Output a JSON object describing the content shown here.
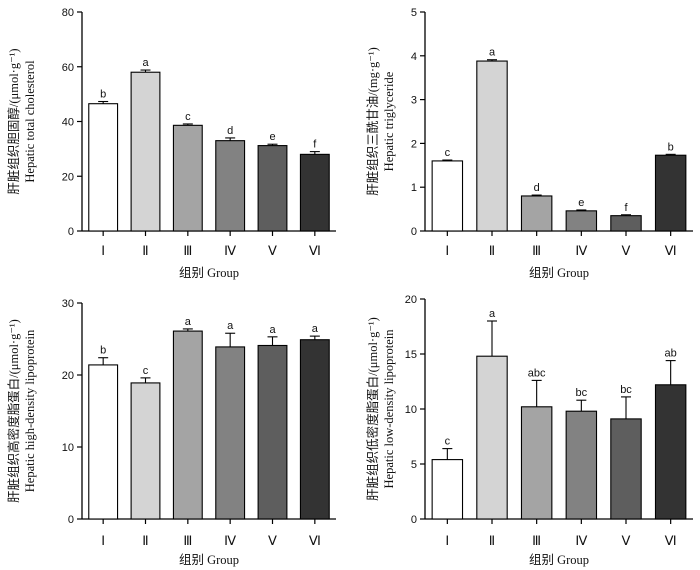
{
  "colors": [
    "#ffffff",
    "#d4d4d4",
    "#a4a4a4",
    "#828282",
    "#5e5e5e",
    "#333333"
  ],
  "chart_data": [
    {
      "type": "bar",
      "title": "",
      "categories": [
        "Ⅰ",
        "Ⅱ",
        "Ⅲ",
        "Ⅳ",
        "Ⅴ",
        "Ⅵ"
      ],
      "values": [
        46.5,
        58.0,
        38.6,
        33.0,
        31.2,
        28.0
      ],
      "errors": [
        0.8,
        0.8,
        0.5,
        1.0,
        0.5,
        1.0
      ],
      "letters": [
        "b",
        "a",
        "c",
        "d",
        "e",
        "f"
      ],
      "xlabel": "组别 Group",
      "ylabel_lines": [
        "肝脏组织胆固醇/(μmol·g⁻¹)",
        "Hepatic total cholesterol"
      ],
      "ylim": [
        0,
        80
      ],
      "yticks": [
        0,
        20,
        40,
        60,
        80
      ]
    },
    {
      "type": "bar",
      "title": "",
      "categories": [
        "Ⅰ",
        "Ⅱ",
        "Ⅲ",
        "Ⅳ",
        "Ⅴ",
        "Ⅵ"
      ],
      "values": [
        1.6,
        3.88,
        0.8,
        0.46,
        0.35,
        1.73
      ],
      "errors": [
        0.02,
        0.03,
        0.02,
        0.02,
        0.02,
        0.02
      ],
      "letters": [
        "c",
        "a",
        "d",
        "e",
        "f",
        "b"
      ],
      "xlabel": "组别 Group",
      "ylabel_lines": [
        "肝脏组织三酰甘油/(mg·g⁻¹)",
        "Hepatic triglyceride"
      ],
      "ylim": [
        0,
        5
      ],
      "yticks": [
        0,
        1,
        2,
        3,
        4,
        5
      ]
    },
    {
      "type": "bar",
      "title": "",
      "categories": [
        "Ⅰ",
        "Ⅱ",
        "Ⅲ",
        "Ⅳ",
        "Ⅴ",
        "Ⅵ"
      ],
      "values": [
        21.4,
        18.9,
        26.1,
        23.9,
        24.1,
        24.9
      ],
      "errors": [
        1.0,
        0.7,
        0.3,
        1.9,
        1.2,
        0.5
      ],
      "letters": [
        "b",
        "c",
        "a",
        "a",
        "a",
        "a"
      ],
      "xlabel": "组别 Group",
      "ylabel_lines": [
        "肝脏组织高密度脂蛋白/(μmol·g⁻¹)",
        "Hepatic high-density lipoprotein"
      ],
      "ylim": [
        0,
        30
      ],
      "yticks": [
        0,
        10,
        20,
        30
      ]
    },
    {
      "type": "bar",
      "title": "",
      "categories": [
        "Ⅰ",
        "Ⅱ",
        "Ⅲ",
        "Ⅳ",
        "Ⅴ",
        "Ⅵ"
      ],
      "values": [
        5.4,
        14.8,
        10.2,
        9.8,
        9.1,
        12.2
      ],
      "errors": [
        1.0,
        3.2,
        2.4,
        1.0,
        2.0,
        2.2
      ],
      "letters": [
        "c",
        "a",
        "abc",
        "bc",
        "bc",
        "ab"
      ],
      "xlabel": "组别 Group",
      "ylabel_lines": [
        "肝脏组织低密度脂蛋白/(μmol·g⁻¹)",
        "Hepatic low-density lipoprotein"
      ],
      "ylim": [
        0,
        20
      ],
      "yticks": [
        0,
        5,
        10,
        15,
        20
      ]
    }
  ]
}
